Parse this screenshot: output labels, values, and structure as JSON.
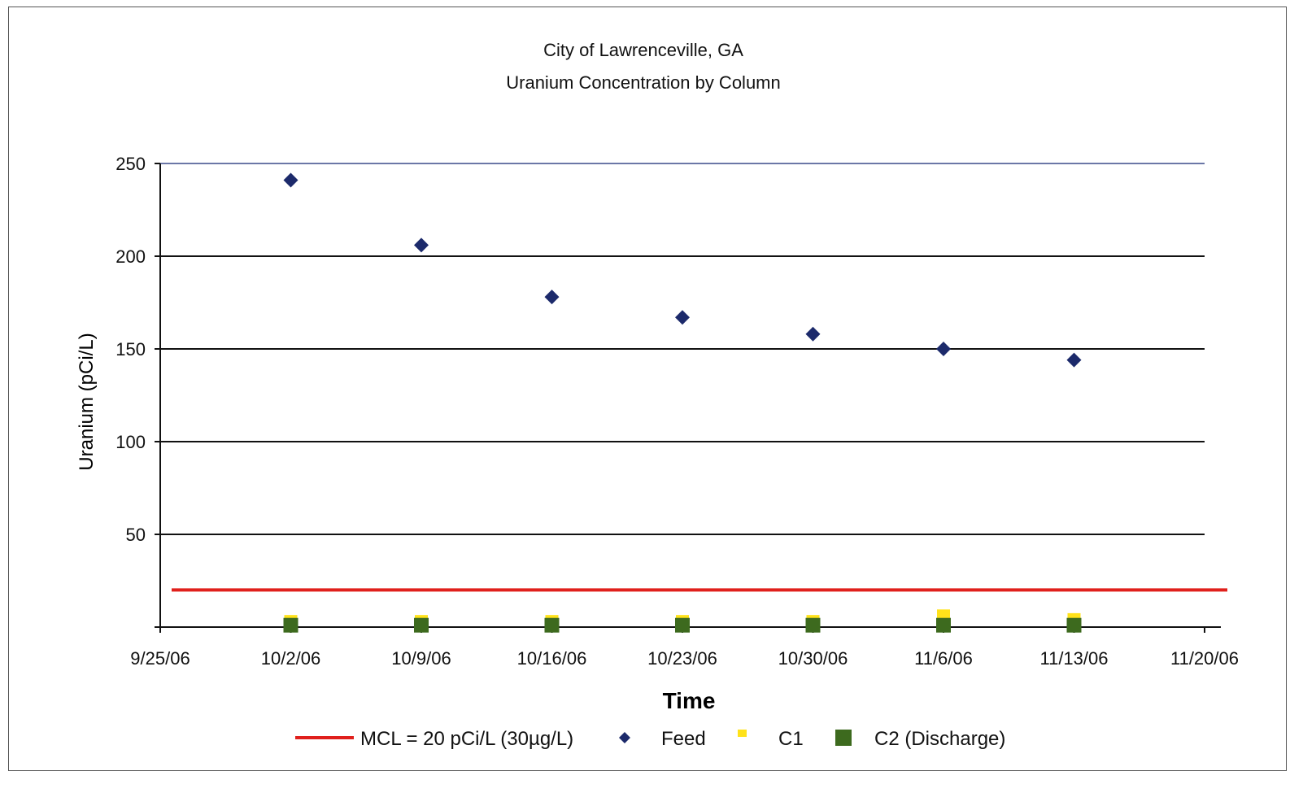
{
  "chart_data": {
    "type": "scatter",
    "title": "City of Lawrenceville, GA",
    "subtitle": "Uranium Concentration by Column",
    "xlabel": "Time",
    "ylabel": "Uranium (pCi/L)",
    "x_axis": {
      "min": "2006-09-25",
      "max": "2006-11-20",
      "ticks": [
        "2006-09-25",
        "2006-10-02",
        "2006-10-09",
        "2006-10-16",
        "2006-10-23",
        "2006-10-30",
        "2006-11-06",
        "2006-11-13",
        "2006-11-20"
      ],
      "tick_labels": [
        "9/25/06",
        "10/2/06",
        "10/9/06",
        "10/16/06",
        "10/23/06",
        "10/30/06",
        "11/6/06",
        "11/13/06",
        "11/20/06"
      ]
    },
    "ylim": [
      0,
      250
    ],
    "yticks": [
      50,
      100,
      150,
      200,
      250
    ],
    "grid": "horizontal",
    "legend_position": "bottom",
    "reference_line": {
      "name": "MCL = 20 pCi/L (30µg/L)",
      "y": 20,
      "color": "#e0201c"
    },
    "series": [
      {
        "name": "Feed",
        "marker": "diamond",
        "color": "#1c2a6b",
        "x": [
          "2006-10-02",
          "2006-10-09",
          "2006-10-16",
          "2006-10-23",
          "2006-10-30",
          "2006-11-06",
          "2006-11-13"
        ],
        "y": [
          241,
          206,
          178,
          167,
          158,
          150,
          144
        ]
      },
      {
        "name": "C1",
        "marker": "square",
        "color": "#ffe21a",
        "x": [
          "2006-10-02",
          "2006-10-09",
          "2006-10-16",
          "2006-10-23",
          "2006-10-30",
          "2006-11-06",
          "2006-11-13"
        ],
        "y": [
          3,
          3,
          3,
          3,
          3,
          6,
          4
        ]
      },
      {
        "name": "C2 (Discharge)",
        "marker": "square",
        "color": "#3d6a1e",
        "x": [
          "2006-10-02",
          "2006-10-09",
          "2006-10-16",
          "2006-10-23",
          "2006-10-30",
          "2006-11-06",
          "2006-11-13"
        ],
        "y": [
          1,
          1,
          1,
          1,
          1,
          1,
          1
        ]
      }
    ]
  }
}
